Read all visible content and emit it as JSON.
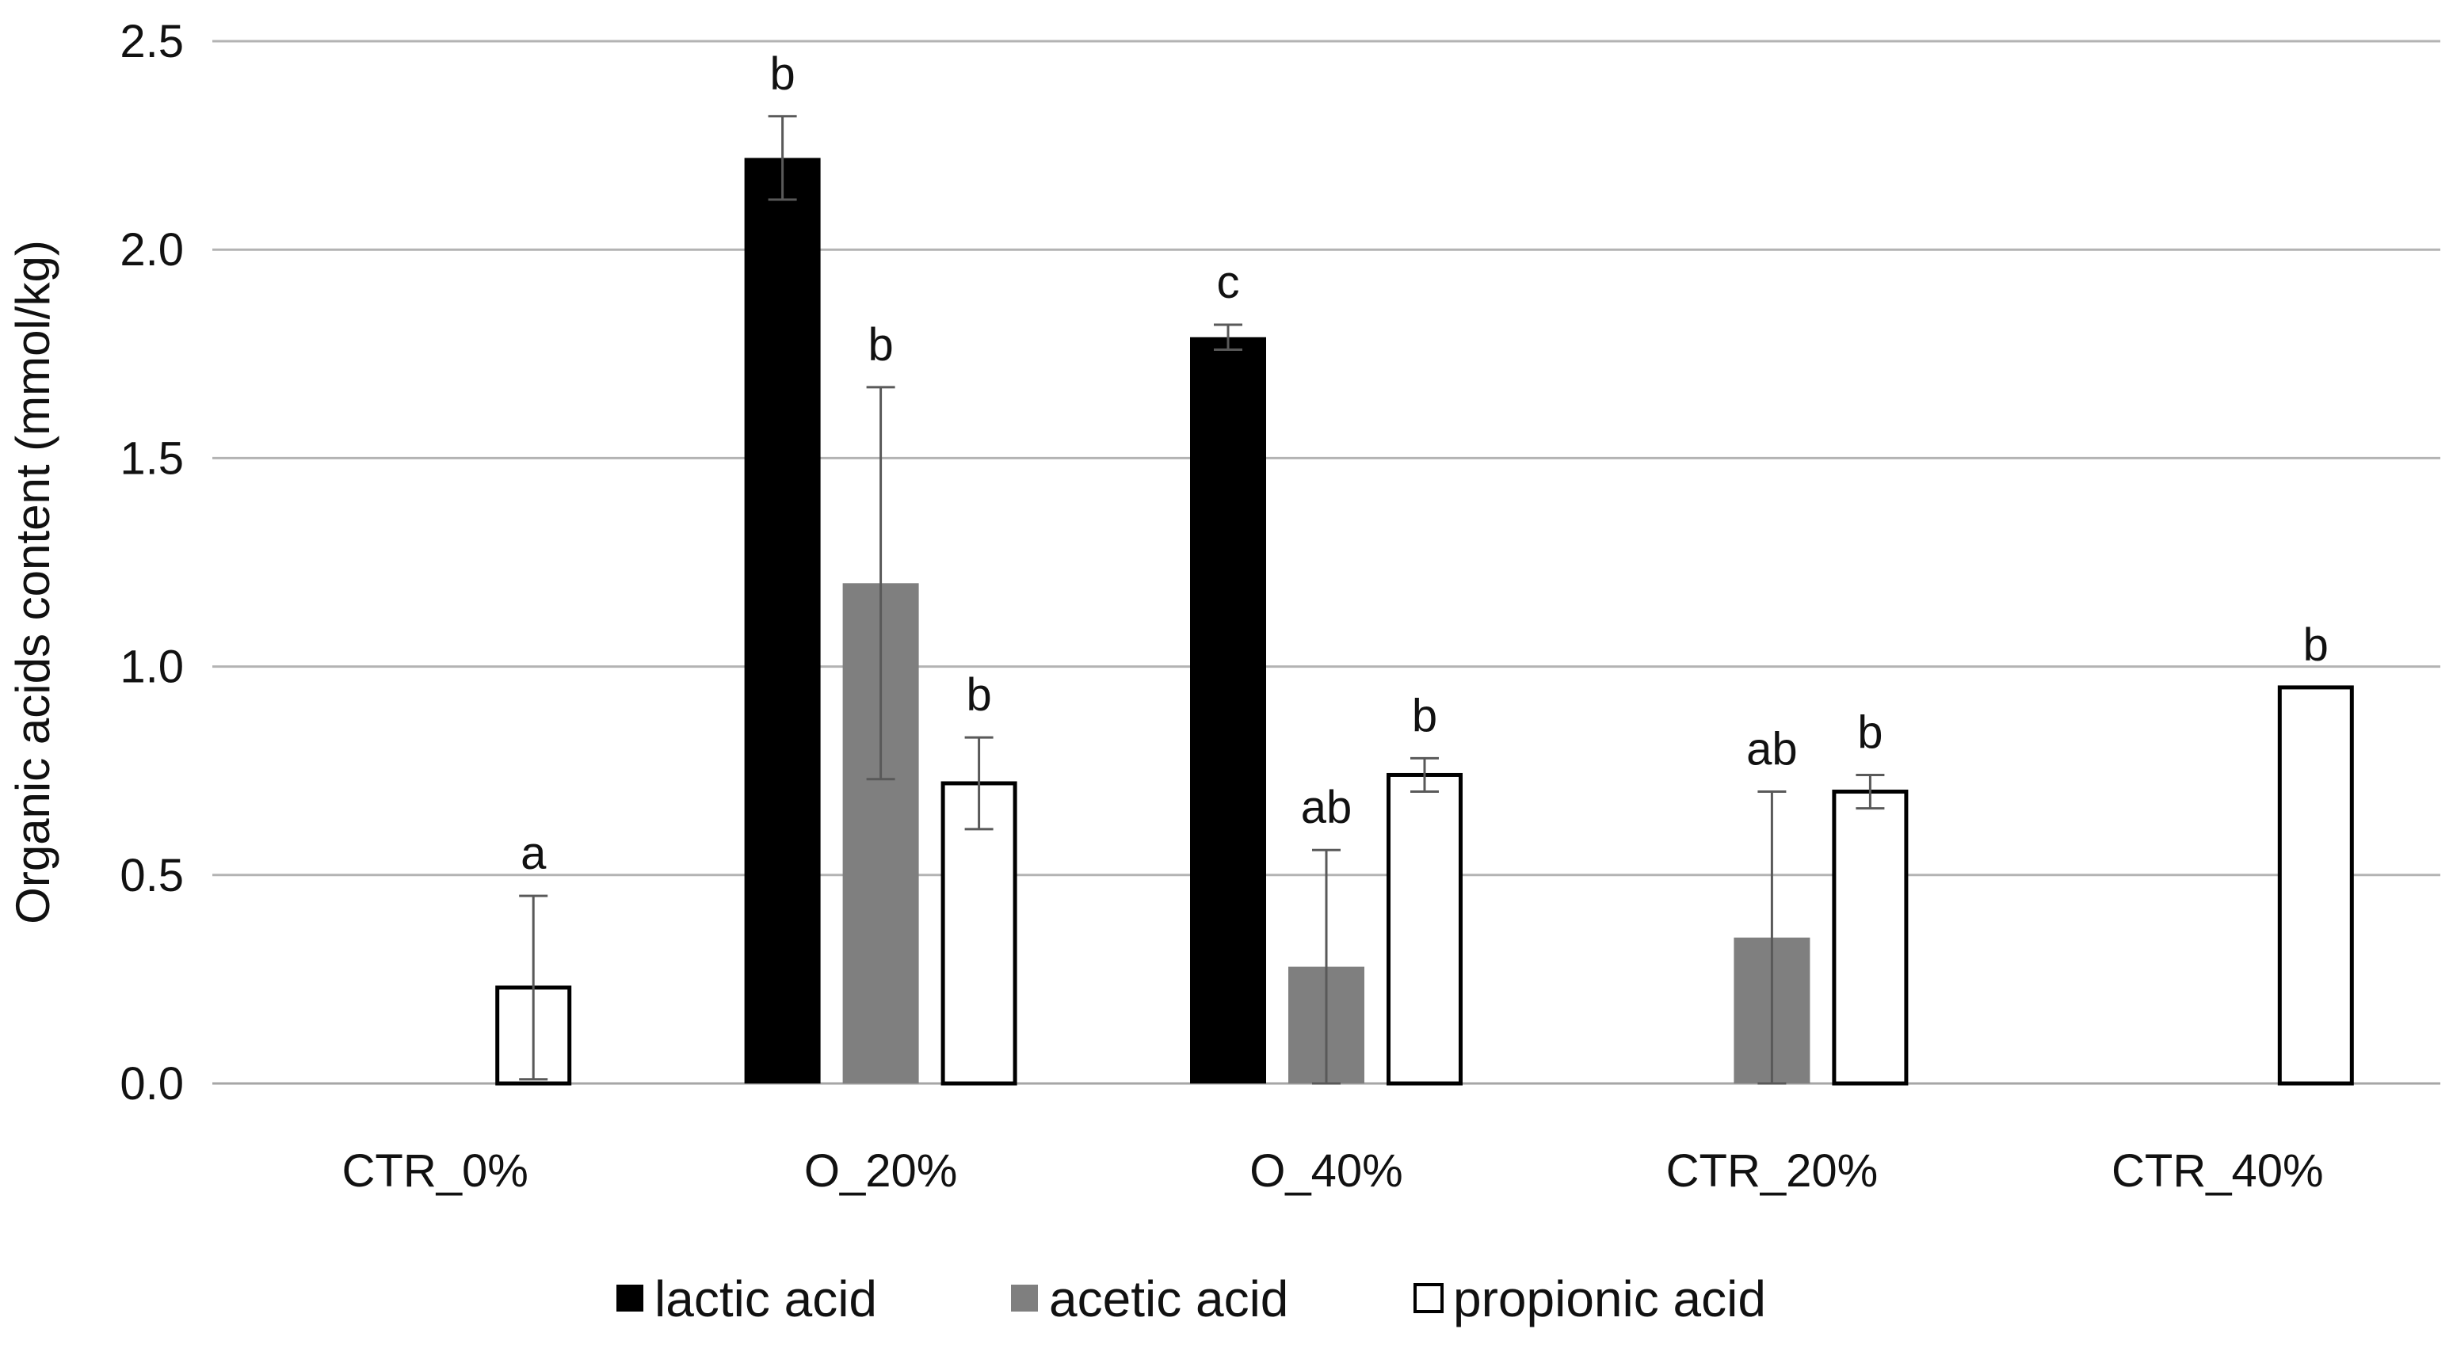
{
  "chart_data": {
    "type": "bar",
    "title": "",
    "xlabel": "",
    "ylabel": "Organic acids content (mmol/kg)",
    "ylim": [
      0,
      2.5
    ],
    "yticks": [
      "0.0",
      "0.5",
      "1.0",
      "1.5",
      "2.0",
      "2.5"
    ],
    "grid": true,
    "legend_position": "bottom",
    "categories": [
      "CTR_0%",
      "O_20%",
      "O_40%",
      "CTR_20%",
      "CTR_40%"
    ],
    "series": [
      {
        "name": "lactic acid",
        "color": "#000000",
        "values": [
          null,
          2.22,
          1.79,
          null,
          null
        ],
        "errors": [
          null,
          0.1,
          0.03,
          null,
          null
        ],
        "letters": [
          null,
          "b",
          "c",
          null,
          null
        ]
      },
      {
        "name": "acetic acid",
        "color": "#7f7f7f",
        "values": [
          null,
          1.2,
          0.28,
          0.35,
          null
        ],
        "errors": [
          null,
          0.47,
          0.28,
          0.35,
          null
        ],
        "letters": [
          null,
          "b",
          "ab",
          "ab",
          null
        ]
      },
      {
        "name": "propionic acid",
        "color": "#ffffff",
        "values": [
          0.23,
          0.72,
          0.74,
          0.7,
          0.95
        ],
        "errors": [
          0.22,
          0.11,
          0.04,
          0.04,
          null
        ],
        "letters": [
          "a",
          "b",
          "b",
          "b",
          "b"
        ]
      }
    ]
  }
}
